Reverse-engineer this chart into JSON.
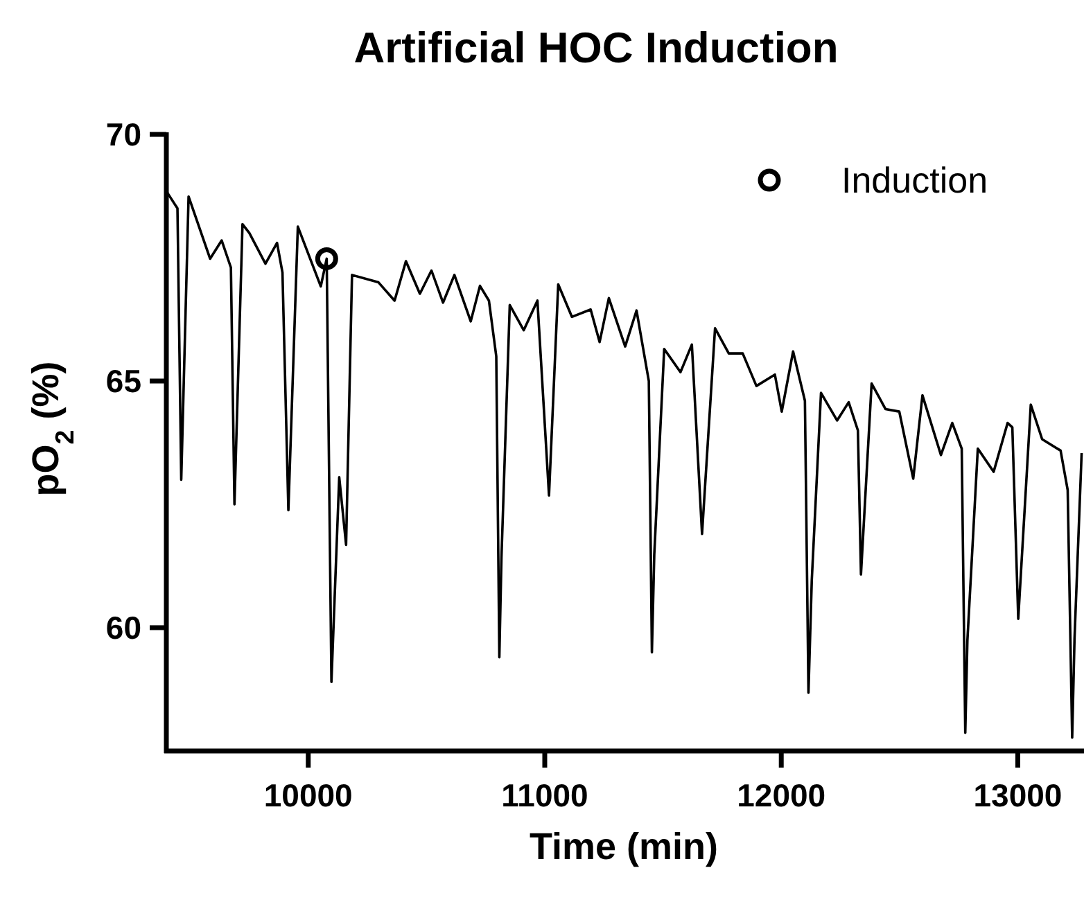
{
  "chart_data": {
    "type": "line",
    "title": "Artificial HOC Induction",
    "xlabel": "Time (min)",
    "ylabel": "pO$_{2}$ (%)",
    "xlim": [
      9400,
      13280
    ],
    "xticks": [
      10000,
      11000,
      12000,
      13000
    ],
    "ylim": [
      57.5,
      70
    ],
    "yticks": [
      60,
      65,
      70
    ],
    "grid": false,
    "legend": "top right",
    "line_style": "solid",
    "series": [
      {
        "color": "#000000",
        "marker": "none",
        "x": [
          9400,
          9447,
          9463,
          9494,
          9585,
          9634,
          9673,
          9688,
          9722,
          9751,
          9819,
          9868,
          9891,
          9916,
          9956,
          10053,
          10078,
          10098,
          10131,
          10160,
          10185,
          10297,
          10365,
          10413,
          10472,
          10521,
          10570,
          10618,
          10687,
          10726,
          10764,
          10795,
          10808,
          10817,
          10852,
          10911,
          10969,
          11018,
          11057,
          11115,
          11194,
          11232,
          11271,
          11340,
          11388,
          11440,
          11453,
          11463,
          11505,
          11574,
          11622,
          11665,
          11720,
          11778,
          11837,
          11895,
          11973,
          12002,
          12050,
          12100,
          12115,
          12129,
          12168,
          12236,
          12285,
          12324,
          12337,
          12382,
          12441,
          12499,
          12558,
          12597,
          12675,
          12723,
          12763,
          12778,
          12787,
          12831,
          12898,
          12957,
          12977,
          13002,
          13055,
          13103,
          13181,
          13211,
          13230,
          13240,
          13270
        ],
        "values": [
          68.85,
          68.5,
          63.0,
          68.74,
          67.48,
          67.85,
          67.3,
          62.5,
          68.18,
          68.0,
          67.38,
          67.8,
          67.2,
          62.38,
          68.13,
          66.92,
          67.48,
          58.9,
          63.05,
          61.68,
          67.15,
          67.0,
          66.63,
          67.43,
          66.77,
          67.24,
          66.59,
          67.15,
          66.21,
          66.93,
          66.63,
          65.5,
          59.4,
          61.43,
          66.54,
          66.03,
          66.63,
          62.68,
          66.96,
          66.3,
          66.45,
          65.79,
          66.68,
          65.7,
          66.43,
          65.0,
          59.5,
          61.48,
          65.65,
          65.18,
          65.74,
          61.9,
          66.07,
          65.56,
          65.56,
          64.9,
          65.13,
          64.38,
          65.6,
          64.6,
          58.68,
          60.96,
          64.76,
          64.2,
          64.57,
          64.0,
          61.08,
          64.95,
          64.43,
          64.38,
          63.02,
          64.71,
          63.5,
          64.15,
          63.63,
          57.87,
          59.74,
          63.63,
          63.16,
          64.15,
          64.06,
          60.18,
          64.52,
          63.82,
          63.59,
          62.79,
          57.77,
          59.79,
          63.54
        ]
      },
      {
        "type": "scatter",
        "name": "Induction",
        "color": "#000000",
        "marker": "circle",
        "x": [
          10078
        ],
        "values": [
          67.48
        ]
      }
    ]
  }
}
